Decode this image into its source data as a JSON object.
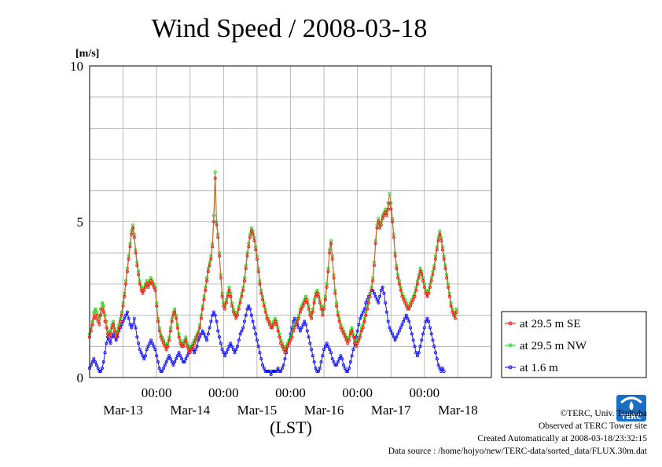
{
  "chart_data": {
    "type": "line",
    "title": "Wind Speed / 2008-03-18",
    "ylabel": "[m/s]",
    "xlabel": "(LST)",
    "ylim": [
      0,
      10
    ],
    "yticks": [
      0,
      5,
      10
    ],
    "xlim_hours": [
      0,
      144
    ],
    "midnight_labels": [
      "00:00",
      "00:00",
      "00:00",
      "00:00",
      "00:00"
    ],
    "date_labels": [
      "Mar-13",
      "Mar-14",
      "Mar-15",
      "Mar-16",
      "Mar-17",
      "Mar-18"
    ],
    "grid": true,
    "legend_position": "right",
    "x_step_hours": 0.5,
    "series": [
      {
        "name": "at 29.5 m SE",
        "color": "#ff0000",
        "values": [
          1.3,
          1.5,
          1.7,
          1.9,
          2.0,
          1.9,
          1.8,
          1.7,
          2.0,
          2.2,
          2.1,
          1.8,
          1.6,
          1.4,
          1.3,
          1.4,
          1.6,
          1.7,
          1.5,
          1.3,
          1.4,
          1.6,
          1.8,
          2.0,
          2.3,
          2.6,
          3.0,
          3.4,
          3.8,
          4.2,
          4.6,
          4.8,
          4.5,
          4.0,
          3.6,
          3.3,
          3.0,
          2.8,
          2.7,
          2.8,
          2.9,
          3.0,
          2.9,
          3.0,
          3.1,
          3.0,
          2.9,
          2.8,
          2.3,
          1.8,
          1.5,
          1.3,
          1.2,
          1.1,
          1.0,
          0.9,
          1.0,
          1.2,
          1.5,
          1.8,
          2.0,
          2.1,
          1.9,
          1.6,
          1.3,
          1.1,
          1.0,
          1.0,
          1.1,
          1.2,
          1.0,
          0.9,
          0.8,
          0.9,
          1.0,
          1.1,
          1.2,
          1.3,
          1.4,
          1.6,
          1.9,
          2.2,
          2.5,
          2.8,
          3.1,
          3.4,
          3.6,
          3.8,
          4.2,
          5.0,
          6.4,
          4.9,
          4.5,
          3.9,
          3.2,
          2.6,
          2.3,
          2.2,
          2.4,
          2.6,
          2.8,
          2.6,
          2.3,
          2.1,
          2.0,
          1.9,
          2.0,
          2.2,
          2.4,
          2.6,
          2.8,
          3.1,
          3.5,
          3.9,
          4.2,
          4.5,
          4.7,
          4.6,
          4.4,
          4.1,
          3.8,
          3.4,
          3.0,
          2.7,
          2.5,
          2.3,
          2.1,
          1.9,
          1.8,
          1.7,
          1.6,
          1.6,
          1.7,
          1.8,
          1.7,
          1.5,
          1.3,
          1.1,
          1.0,
          0.9,
          0.8,
          0.9,
          1.0,
          1.1,
          1.2,
          1.3,
          1.5,
          1.6,
          1.7,
          1.8,
          1.9,
          2.1,
          2.2,
          2.3,
          2.4,
          2.5,
          2.4,
          2.2,
          2.0,
          1.9,
          2.1,
          2.4,
          2.6,
          2.7,
          2.6,
          2.4,
          2.2,
          2.0,
          2.2,
          2.5,
          2.9,
          3.4,
          4.0,
          4.3,
          3.8,
          3.2,
          2.7,
          2.3,
          2.0,
          1.8,
          1.6,
          1.5,
          1.4,
          1.3,
          1.2,
          1.1,
          1.2,
          1.4,
          1.5,
          1.3,
          1.1,
          1.0,
          1.1,
          1.2,
          1.3,
          1.5,
          1.6,
          1.8,
          2.0,
          2.2,
          2.4,
          2.6,
          2.8,
          3.1,
          3.6,
          4.3,
          4.8,
          5.0,
          4.8,
          4.9,
          5.1,
          5.2,
          5.3,
          5.2,
          5.4,
          5.6,
          5.4,
          5.0,
          4.5,
          3.9,
          3.5,
          3.2,
          3.0,
          2.8,
          2.6,
          2.5,
          2.4,
          2.3,
          2.2,
          2.2,
          2.3,
          2.4,
          2.5,
          2.6,
          2.8,
          3.0,
          3.2,
          3.4,
          3.3,
          3.1,
          2.9,
          2.7,
          2.6,
          2.7,
          2.9,
          3.1,
          3.3,
          3.5,
          3.8,
          4.1,
          4.4,
          4.6,
          4.4,
          4.1,
          3.8,
          3.5,
          3.2,
          2.9,
          2.6,
          2.3,
          2.1,
          2.0,
          1.9,
          2.1
        ]
      },
      {
        "name": "at 29.5 m NW",
        "color": "#00dd00",
        "values": [
          1.4,
          1.6,
          1.8,
          2.1,
          2.2,
          2.1,
          2.0,
          1.9,
          2.2,
          2.4,
          2.3,
          2.0,
          1.8,
          1.5,
          1.4,
          1.5,
          1.7,
          1.8,
          1.6,
          1.4,
          1.5,
          1.7,
          1.9,
          2.1,
          2.4,
          2.7,
          3.1,
          3.5,
          3.9,
          4.3,
          4.7,
          4.9,
          4.6,
          4.1,
          3.7,
          3.4,
          3.1,
          2.9,
          2.8,
          2.9,
          3.0,
          3.1,
          3.0,
          3.1,
          3.2,
          3.1,
          3.0,
          2.9,
          2.4,
          1.9,
          1.6,
          1.4,
          1.3,
          1.2,
          1.1,
          1.0,
          1.1,
          1.3,
          1.6,
          1.9,
          2.1,
          2.2,
          2.0,
          1.7,
          1.4,
          1.2,
          1.1,
          1.1,
          1.2,
          1.3,
          1.1,
          1.0,
          0.9,
          1.0,
          1.1,
          1.2,
          1.3,
          1.4,
          1.5,
          1.7,
          2.0,
          2.3,
          2.6,
          2.9,
          3.2,
          3.5,
          3.7,
          3.9,
          4.3,
          5.2,
          6.6,
          5.0,
          4.6,
          4.0,
          3.3,
          2.7,
          2.4,
          2.3,
          2.5,
          2.7,
          2.9,
          2.7,
          2.4,
          2.2,
          2.1,
          2.0,
          2.1,
          2.3,
          2.5,
          2.7,
          2.9,
          3.2,
          3.6,
          4.0,
          4.3,
          4.6,
          4.8,
          4.7,
          4.5,
          4.2,
          3.9,
          3.5,
          3.1,
          2.8,
          2.6,
          2.4,
          2.2,
          2.0,
          1.9,
          1.8,
          1.7,
          1.7,
          1.8,
          1.9,
          1.8,
          1.6,
          1.4,
          1.2,
          1.1,
          1.0,
          0.9,
          1.0,
          1.1,
          1.2,
          1.3,
          1.4,
          1.6,
          1.7,
          1.8,
          1.9,
          2.0,
          2.2,
          2.3,
          2.4,
          2.5,
          2.6,
          2.5,
          2.3,
          2.1,
          2.0,
          2.2,
          2.5,
          2.7,
          2.8,
          2.7,
          2.5,
          2.3,
          2.1,
          2.3,
          2.6,
          3.0,
          3.5,
          4.1,
          4.4,
          3.9,
          3.3,
          2.8,
          2.4,
          2.1,
          1.9,
          1.7,
          1.6,
          1.5,
          1.4,
          1.3,
          1.2,
          1.3,
          1.5,
          1.6,
          1.4,
          1.2,
          1.1,
          1.2,
          1.3,
          1.4,
          1.6,
          1.7,
          1.9,
          2.1,
          2.3,
          2.5,
          2.7,
          2.9,
          3.2,
          3.7,
          4.4,
          4.9,
          5.1,
          4.9,
          5.0,
          5.2,
          5.3,
          5.4,
          5.3,
          5.6,
          5.9,
          5.6,
          5.1,
          4.6,
          4.0,
          3.6,
          3.3,
          3.1,
          2.9,
          2.7,
          2.6,
          2.5,
          2.4,
          2.3,
          2.3,
          2.4,
          2.5,
          2.6,
          2.7,
          2.9,
          3.1,
          3.3,
          3.5,
          3.4,
          3.2,
          3.0,
          2.8,
          2.7,
          2.8,
          3.0,
          3.2,
          3.4,
          3.6,
          3.9,
          4.2,
          4.5,
          4.7,
          4.5,
          4.2,
          3.9,
          3.6,
          3.3,
          3.0,
          2.7,
          2.4,
          2.2,
          2.1,
          2.0,
          2.2
        ]
      },
      {
        "name": "at 1.6 m",
        "color": "#0000ff",
        "values": [
          0.3,
          0.4,
          0.5,
          0.6,
          0.5,
          0.4,
          0.3,
          0.2,
          0.2,
          0.3,
          0.5,
          0.8,
          1.1,
          1.3,
          1.2,
          1.1,
          1.3,
          1.4,
          1.3,
          1.2,
          1.3,
          1.5,
          1.6,
          1.7,
          1.8,
          1.9,
          2.0,
          2.1,
          1.9,
          1.7,
          1.6,
          1.7,
          1.9,
          1.6,
          1.3,
          1.1,
          0.9,
          0.8,
          0.7,
          0.6,
          0.7,
          0.9,
          1.0,
          1.1,
          1.2,
          1.1,
          1.0,
          0.9,
          0.7,
          0.5,
          0.3,
          0.2,
          0.2,
          0.3,
          0.4,
          0.5,
          0.6,
          0.7,
          0.6,
          0.5,
          0.4,
          0.5,
          0.6,
          0.7,
          0.8,
          0.7,
          0.6,
          0.5,
          0.5,
          0.6,
          0.7,
          0.8,
          0.9,
          1.0,
          0.9,
          0.8,
          0.9,
          1.0,
          1.2,
          1.3,
          1.4,
          1.5,
          1.4,
          1.3,
          1.2,
          1.4,
          1.6,
          1.8,
          2.0,
          2.1,
          2.0,
          1.8,
          1.5,
          1.3,
          1.1,
          0.9,
          0.8,
          0.7,
          0.8,
          0.9,
          1.0,
          1.1,
          1.0,
          0.9,
          0.8,
          0.9,
          1.0,
          1.2,
          1.4,
          1.5,
          1.6,
          1.8,
          2.0,
          2.2,
          2.3,
          2.2,
          2.0,
          1.8,
          1.6,
          1.4,
          1.2,
          1.0,
          0.8,
          0.6,
          0.4,
          0.3,
          0.2,
          0.2,
          0.2,
          0.2,
          0.1,
          0.2,
          0.2,
          0.2,
          0.2,
          0.3,
          0.2,
          0.2,
          0.3,
          0.4,
          0.6,
          0.8,
          1.0,
          1.2,
          1.4,
          1.6,
          1.8,
          1.9,
          1.8,
          1.7,
          1.6,
          1.5,
          1.6,
          1.7,
          1.8,
          1.7,
          1.5,
          1.3,
          1.1,
          0.9,
          0.7,
          0.5,
          0.3,
          0.2,
          0.2,
          0.3,
          0.5,
          0.7,
          0.9,
          1.0,
          1.1,
          1.0,
          0.9,
          0.8,
          0.6,
          0.5,
          0.4,
          0.4,
          0.5,
          0.6,
          0.7,
          0.6,
          0.4,
          0.3,
          0.2,
          0.2,
          0.3,
          0.5,
          0.7,
          0.9,
          1.1,
          1.3,
          1.5,
          1.7,
          1.9,
          2.0,
          2.1,
          2.2,
          2.4,
          2.5,
          2.6,
          2.7,
          2.8,
          2.8,
          2.7,
          2.6,
          2.5,
          2.4,
          2.6,
          2.8,
          2.9,
          2.7,
          2.4,
          2.1,
          1.8,
          1.6,
          1.5,
          1.4,
          1.3,
          1.2,
          1.3,
          1.4,
          1.5,
          1.6,
          1.7,
          1.8,
          1.9,
          2.0,
          1.9,
          1.8,
          1.6,
          1.4,
          1.2,
          1.0,
          0.8,
          0.7,
          0.8,
          1.0,
          1.2,
          1.4,
          1.6,
          1.8,
          1.9,
          1.8,
          1.6,
          1.4,
          1.2,
          1.0,
          0.8,
          0.6,
          0.4,
          0.3,
          0.2,
          0.3,
          0.2
        ]
      }
    ]
  },
  "footer": {
    "copyright": "©TERC, Univ. Tsukuba",
    "observed": "Observed at TERC Tower site",
    "created": "Created Automatically at 2008-03-18/23:32:15",
    "source": "Data source : /home/hojyo/new/TERC-data/sorted_data/FLUX.30m.dat"
  },
  "logo": {
    "text": "TERC",
    "color": "#1a6ec4"
  }
}
